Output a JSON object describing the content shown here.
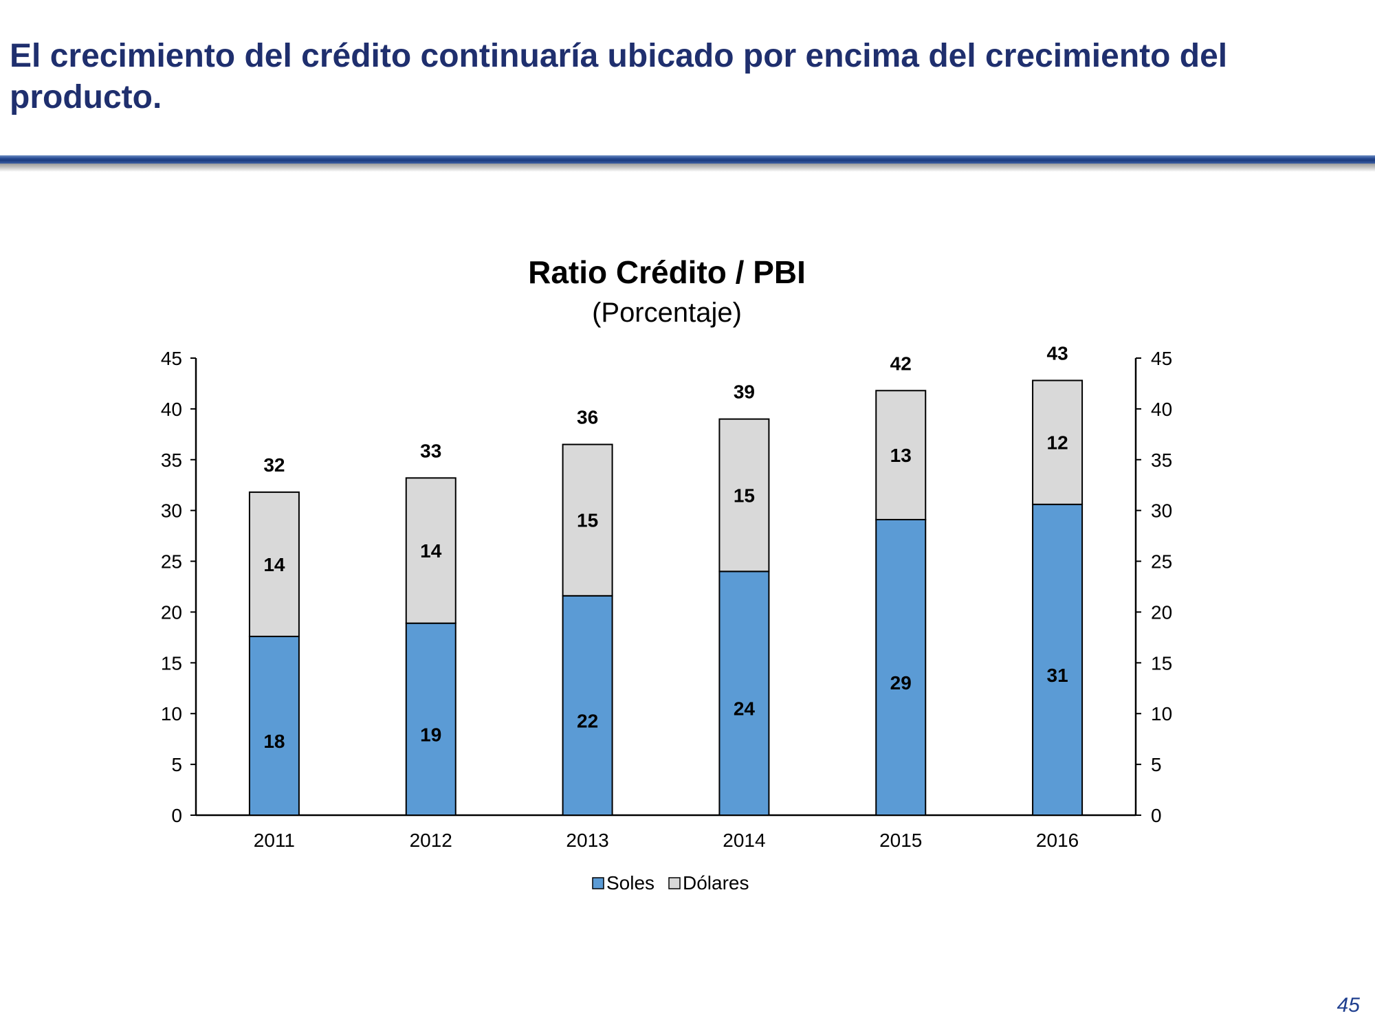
{
  "slide": {
    "title": "El crecimiento del crédito continuaría ubicado por encima del crecimiento del producto.",
    "page_number": "45"
  },
  "colors": {
    "soles": "#5b9bd5",
    "dolares": "#d9d9d9",
    "title": "#1f2f6e",
    "rule": "#1a3a7e"
  },
  "chart_data": {
    "type": "bar",
    "stacked": true,
    "title": "Ratio Crédito / PBI",
    "subtitle": "(Porcentaje)",
    "categories": [
      "2011",
      "2012",
      "2013",
      "2014",
      "2015",
      "2016"
    ],
    "series": [
      {
        "name": "Soles",
        "values": [
          17.6,
          18.9,
          21.6,
          24.0,
          29.1,
          30.6
        ],
        "labels": [
          "18",
          "19",
          "22",
          "24",
          "29",
          "31"
        ],
        "color": "#5b9bd5"
      },
      {
        "name": "Dólares",
        "values": [
          14.2,
          14.3,
          14.9,
          15.0,
          12.7,
          12.2
        ],
        "labels": [
          "14",
          "14",
          "15",
          "15",
          "13",
          "12"
        ],
        "color": "#d9d9d9"
      }
    ],
    "totals": [
      "32",
      "33",
      "36",
      "39",
      "42",
      "43"
    ],
    "ylim": [
      0,
      45
    ],
    "yticks": [
      0,
      5,
      10,
      15,
      20,
      25,
      30,
      35,
      40,
      45
    ],
    "secondary_yticks": [
      0,
      5,
      10,
      15,
      20,
      25,
      30,
      35,
      40,
      45
    ],
    "grid": false,
    "legend": "bottom-center"
  }
}
